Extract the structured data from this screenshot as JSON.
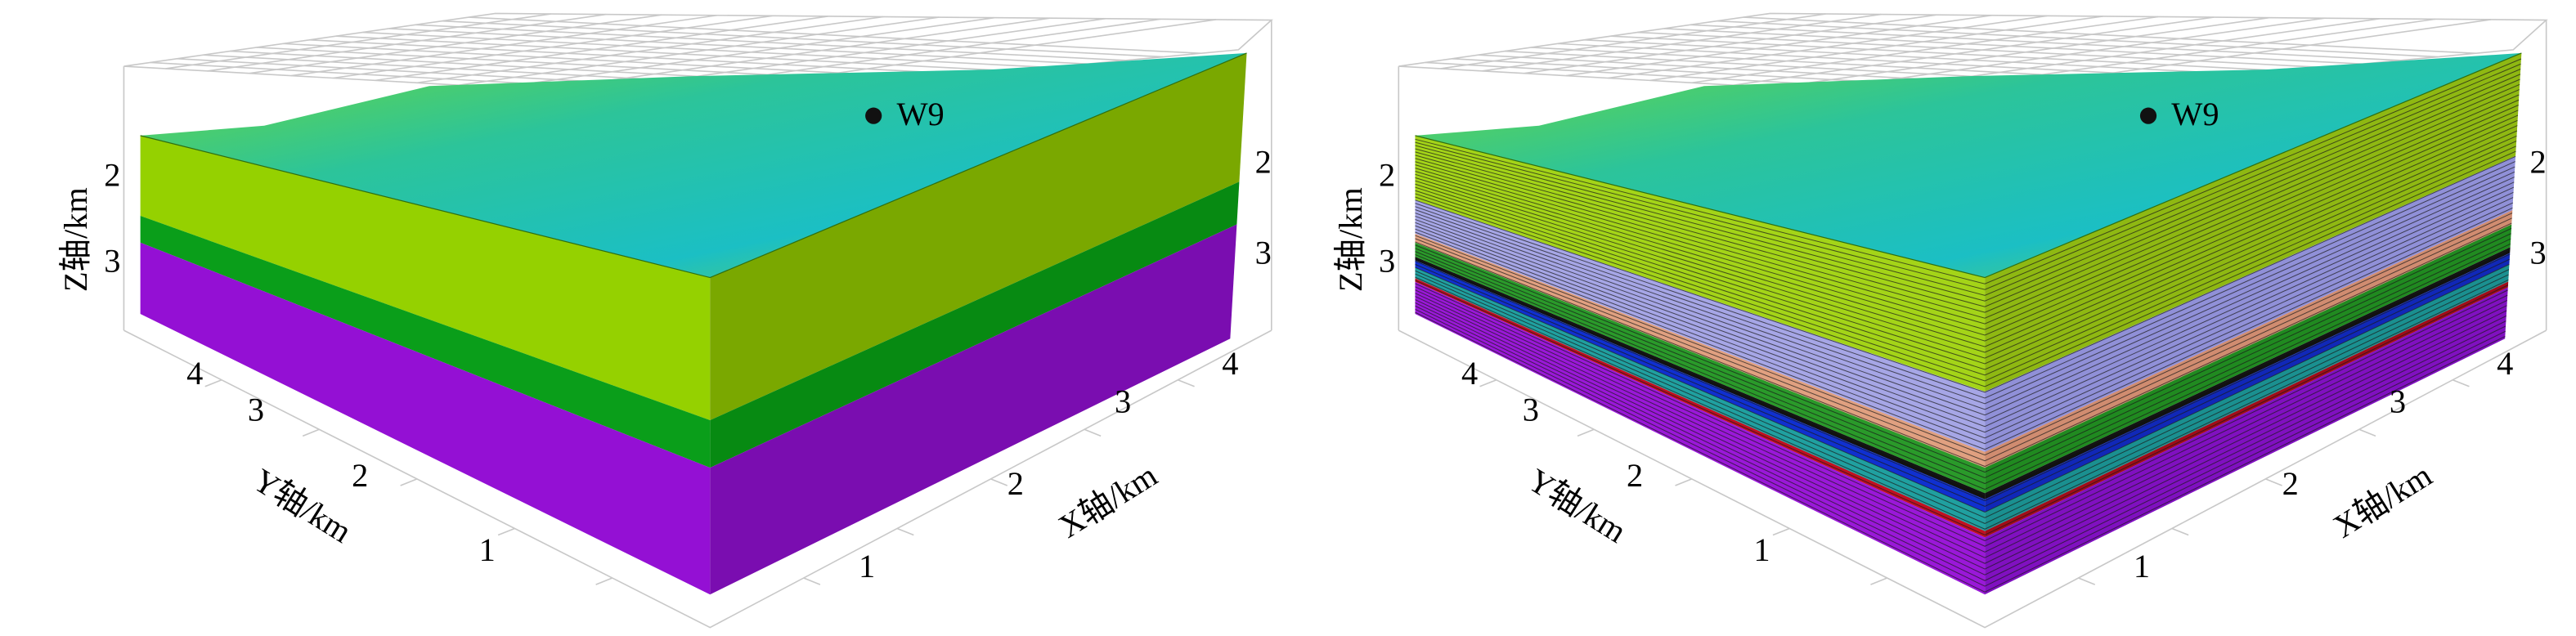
{
  "panels": [
    {
      "well": "W9",
      "z_axis": {
        "label": "Z轴/km",
        "ticks_left": [
          "2",
          "3"
        ],
        "ticks_right": [
          "2",
          "3"
        ]
      },
      "y_axis": {
        "label": "Y轴/km",
        "ticks": [
          "4",
          "3",
          "2",
          "1"
        ]
      },
      "x_axis": {
        "label": "X轴/km",
        "ticks": [
          "1",
          "2",
          "3",
          "4"
        ]
      }
    },
    {
      "well": "W9",
      "z_axis": {
        "label": "Z轴/km",
        "ticks_left": [
          "2",
          "3"
        ],
        "ticks_right": [
          "2",
          "3"
        ]
      },
      "y_axis": {
        "label": "Y轴/km",
        "ticks": [
          "4",
          "3",
          "2",
          "1"
        ]
      },
      "x_axis": {
        "label": "X轴/km",
        "ticks": [
          "1",
          "2",
          "3",
          "4"
        ]
      }
    }
  ]
}
